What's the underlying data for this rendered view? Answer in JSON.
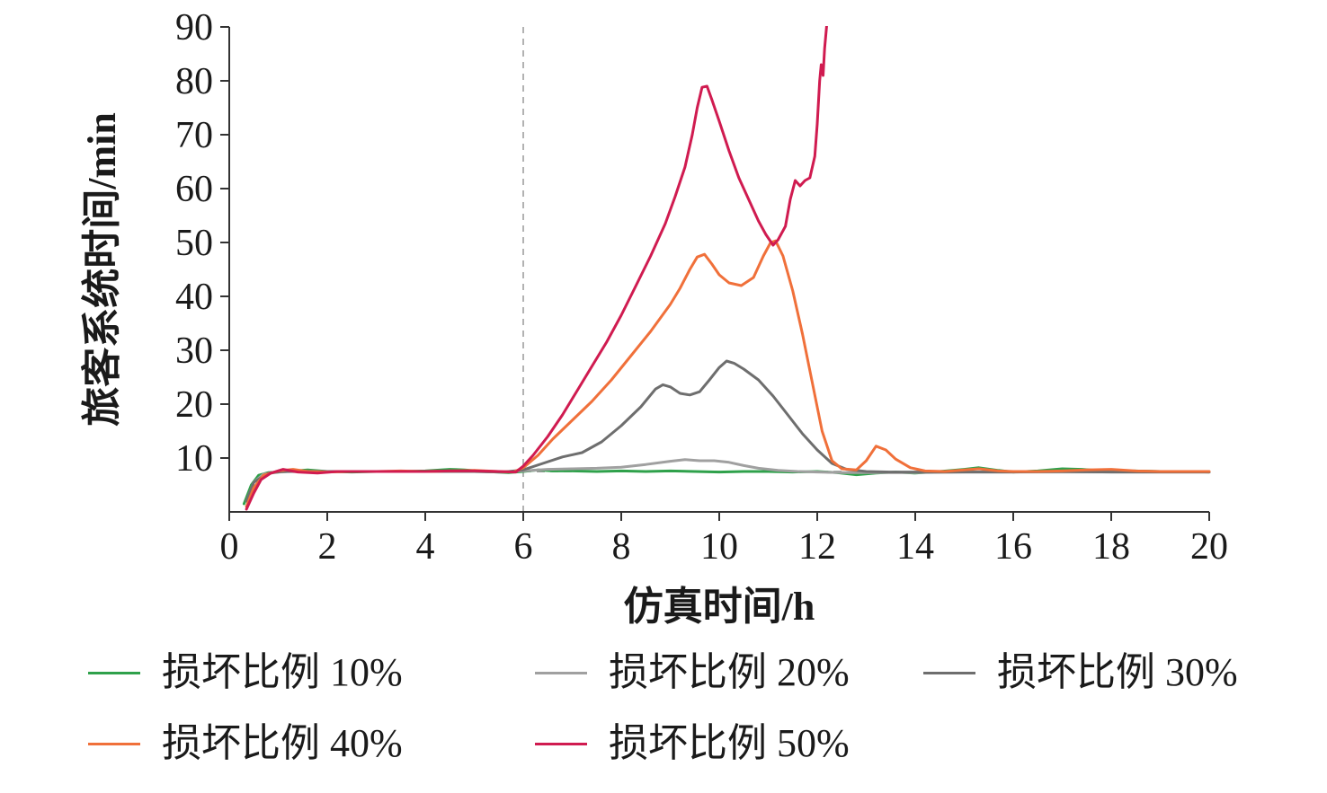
{
  "chart_data": {
    "type": "line",
    "title": "",
    "xlabel": "仿真时间/h",
    "ylabel": "旅客系统时间/min",
    "xlim": [
      0,
      20
    ],
    "ylim": [
      0,
      90
    ],
    "xticks": [
      0,
      2,
      4,
      6,
      8,
      10,
      12,
      14,
      16,
      18,
      20
    ],
    "yticks": [
      10,
      20,
      30,
      40,
      50,
      60,
      70,
      80,
      90
    ],
    "grid": false,
    "legend_position": "bottom",
    "axis_color": "#333333",
    "annotations": {
      "vline_x": 6,
      "vline_color": "#999999",
      "hline_y": 7.5,
      "hline_x1": 6,
      "hline_x2": 12.6,
      "hline_color": "#777777"
    },
    "series": [
      {
        "label": "损坏比例 10%",
        "color": "#2fa14b",
        "points": [
          [
            0.3,
            1.5
          ],
          [
            0.45,
            5
          ],
          [
            0.6,
            6.8
          ],
          [
            0.8,
            7.3
          ],
          [
            1.2,
            7.5
          ],
          [
            1.6,
            7.8
          ],
          [
            2,
            7.5
          ],
          [
            2.5,
            7.4
          ],
          [
            3,
            7.5
          ],
          [
            3.5,
            7.5
          ],
          [
            4,
            7.6
          ],
          [
            4.5,
            7.9
          ],
          [
            4.8,
            7.8
          ],
          [
            5.2,
            7.5
          ],
          [
            5.7,
            7.3
          ],
          [
            6,
            7.5
          ],
          [
            6.3,
            7.8
          ],
          [
            6.6,
            7.6
          ],
          [
            7,
            7.6
          ],
          [
            7.5,
            7.5
          ],
          [
            8,
            7.6
          ],
          [
            8.5,
            7.5
          ],
          [
            9,
            7.6
          ],
          [
            9.5,
            7.5
          ],
          [
            10,
            7.4
          ],
          [
            10.5,
            7.5
          ],
          [
            11,
            7.5
          ],
          [
            11.5,
            7.4
          ],
          [
            12,
            7.5
          ],
          [
            12.4,
            7.3
          ],
          [
            12.8,
            6.9
          ],
          [
            13.2,
            7.2
          ],
          [
            13.6,
            7.4
          ],
          [
            14,
            7.2
          ],
          [
            14.5,
            7.5
          ],
          [
            15,
            7.9
          ],
          [
            15.3,
            8.2
          ],
          [
            15.7,
            7.7
          ],
          [
            16,
            7.4
          ],
          [
            16.5,
            7.6
          ],
          [
            17,
            8.0
          ],
          [
            17.4,
            7.9
          ],
          [
            18,
            7.5
          ],
          [
            18.5,
            7.6
          ],
          [
            19,
            7.5
          ],
          [
            19.5,
            7.5
          ],
          [
            20,
            7.4
          ]
        ]
      },
      {
        "label": "损坏比例 20%",
        "color": "#a0a0a0",
        "points": [
          [
            0.35,
            2
          ],
          [
            0.5,
            5.5
          ],
          [
            0.7,
            7
          ],
          [
            1,
            7.4
          ],
          [
            1.5,
            7.5
          ],
          [
            2,
            7.5
          ],
          [
            3,
            7.5
          ],
          [
            4,
            7.5
          ],
          [
            5,
            7.5
          ],
          [
            5.5,
            7.4
          ],
          [
            6,
            7.6
          ],
          [
            6.5,
            7.9
          ],
          [
            7,
            8.0
          ],
          [
            7.5,
            8.1
          ],
          [
            8,
            8.3
          ],
          [
            8.5,
            8.8
          ],
          [
            9,
            9.4
          ],
          [
            9.3,
            9.7
          ],
          [
            9.6,
            9.5
          ],
          [
            9.9,
            9.5
          ],
          [
            10.2,
            9.2
          ],
          [
            10.5,
            8.6
          ],
          [
            10.8,
            8.1
          ],
          [
            11.2,
            7.7
          ],
          [
            11.6,
            7.5
          ],
          [
            12,
            7.4
          ],
          [
            12.5,
            7.3
          ],
          [
            13,
            7.3
          ],
          [
            13.5,
            7.3
          ],
          [
            14,
            7.3
          ],
          [
            15,
            7.4
          ],
          [
            16,
            7.4
          ],
          [
            17,
            7.4
          ],
          [
            18,
            7.4
          ],
          [
            19,
            7.4
          ],
          [
            20,
            7.4
          ]
        ]
      },
      {
        "label": "损坏比例 30%",
        "color": "#6e6e6e",
        "points": [
          [
            0.35,
            2
          ],
          [
            0.5,
            5.5
          ],
          [
            0.8,
            7.2
          ],
          [
            1.2,
            7.6
          ],
          [
            2,
            7.5
          ],
          [
            3,
            7.5
          ],
          [
            4,
            7.5
          ],
          [
            5,
            7.5
          ],
          [
            5.6,
            7.4
          ],
          [
            6,
            7.8
          ],
          [
            6.4,
            9
          ],
          [
            6.8,
            10.2
          ],
          [
            7.2,
            11
          ],
          [
            7.6,
            13
          ],
          [
            8,
            16
          ],
          [
            8.4,
            19.5
          ],
          [
            8.7,
            22.8
          ],
          [
            8.85,
            23.6
          ],
          [
            9,
            23.2
          ],
          [
            9.2,
            22.0
          ],
          [
            9.4,
            21.7
          ],
          [
            9.6,
            22.3
          ],
          [
            9.8,
            24.5
          ],
          [
            10,
            26.8
          ],
          [
            10.15,
            28
          ],
          [
            10.3,
            27.6
          ],
          [
            10.5,
            26.5
          ],
          [
            10.8,
            24.5
          ],
          [
            11.1,
            21.5
          ],
          [
            11.4,
            18
          ],
          [
            11.7,
            14.5
          ],
          [
            12,
            11.5
          ],
          [
            12.3,
            9
          ],
          [
            12.6,
            7.9
          ],
          [
            13,
            7.5
          ],
          [
            13.5,
            7.4
          ],
          [
            14,
            7.4
          ],
          [
            15,
            7.4
          ],
          [
            16,
            7.4
          ],
          [
            17,
            7.5
          ],
          [
            18,
            7.4
          ],
          [
            19,
            7.4
          ],
          [
            20,
            7.4
          ]
        ]
      },
      {
        "label": "损坏比例 40%",
        "color": "#f0703a",
        "points": [
          [
            0.35,
            1
          ],
          [
            0.5,
            4.5
          ],
          [
            0.7,
            6.8
          ],
          [
            1,
            7.6
          ],
          [
            1.3,
            7.9
          ],
          [
            1.6,
            7.5
          ],
          [
            2,
            7.4
          ],
          [
            2.5,
            7.5
          ],
          [
            3,
            7.5
          ],
          [
            3.5,
            7.6
          ],
          [
            4,
            7.5
          ],
          [
            4.5,
            7.6
          ],
          [
            5,
            7.7
          ],
          [
            5.5,
            7.5
          ],
          [
            5.8,
            7.4
          ],
          [
            6,
            8.2
          ],
          [
            6.3,
            10.5
          ],
          [
            6.6,
            13.5
          ],
          [
            7,
            17
          ],
          [
            7.4,
            20.5
          ],
          [
            7.8,
            24.5
          ],
          [
            8.2,
            29
          ],
          [
            8.6,
            33.5
          ],
          [
            9,
            38.5
          ],
          [
            9.2,
            41.5
          ],
          [
            9.4,
            45
          ],
          [
            9.55,
            47.3
          ],
          [
            9.7,
            47.8
          ],
          [
            9.85,
            46
          ],
          [
            10,
            44
          ],
          [
            10.2,
            42.5
          ],
          [
            10.45,
            42
          ],
          [
            10.7,
            43.5
          ],
          [
            10.9,
            47.5
          ],
          [
            11.05,
            50
          ],
          [
            11.15,
            50.3
          ],
          [
            11.3,
            47.5
          ],
          [
            11.5,
            41
          ],
          [
            11.7,
            33
          ],
          [
            11.9,
            24
          ],
          [
            12.1,
            15
          ],
          [
            12.3,
            9.5
          ],
          [
            12.5,
            8
          ],
          [
            12.8,
            7.8
          ],
          [
            13,
            9.5
          ],
          [
            13.2,
            12.2
          ],
          [
            13.4,
            11.5
          ],
          [
            13.6,
            9.8
          ],
          [
            13.9,
            8.2
          ],
          [
            14.2,
            7.6
          ],
          [
            14.6,
            7.5
          ],
          [
            15,
            7.8
          ],
          [
            15.3,
            8.0
          ],
          [
            15.7,
            7.6
          ],
          [
            16,
            7.5
          ],
          [
            16.5,
            7.5
          ],
          [
            17,
            7.6
          ],
          [
            17.5,
            7.8
          ],
          [
            18,
            7.9
          ],
          [
            18.5,
            7.6
          ],
          [
            19,
            7.5
          ],
          [
            19.5,
            7.5
          ],
          [
            20,
            7.5
          ]
        ]
      },
      {
        "label": "损坏比例 50%",
        "color": "#d01b50",
        "points": [
          [
            0.35,
            0.5
          ],
          [
            0.5,
            3.5
          ],
          [
            0.65,
            6
          ],
          [
            0.85,
            7.2
          ],
          [
            1.1,
            7.9
          ],
          [
            1.4,
            7.4
          ],
          [
            1.8,
            7.2
          ],
          [
            2.2,
            7.5
          ],
          [
            2.6,
            7.5
          ],
          [
            3,
            7.5
          ],
          [
            3.5,
            7.5
          ],
          [
            4,
            7.5
          ],
          [
            4.5,
            7.6
          ],
          [
            5,
            7.6
          ],
          [
            5.5,
            7.5
          ],
          [
            5.85,
            7.4
          ],
          [
            6,
            8.5
          ],
          [
            6.2,
            10.5
          ],
          [
            6.5,
            14
          ],
          [
            6.8,
            18
          ],
          [
            7.1,
            22.5
          ],
          [
            7.4,
            27
          ],
          [
            7.7,
            31.5
          ],
          [
            8,
            36.5
          ],
          [
            8.3,
            42
          ],
          [
            8.6,
            47.5
          ],
          [
            8.9,
            53.5
          ],
          [
            9.1,
            58.5
          ],
          [
            9.3,
            64
          ],
          [
            9.45,
            70
          ],
          [
            9.55,
            75
          ],
          [
            9.65,
            78.8
          ],
          [
            9.75,
            79
          ],
          [
            9.85,
            76.5
          ],
          [
            10,
            72.5
          ],
          [
            10.2,
            67
          ],
          [
            10.4,
            62
          ],
          [
            10.6,
            58
          ],
          [
            10.8,
            54
          ],
          [
            10.95,
            51.5
          ],
          [
            11.1,
            49.5
          ],
          [
            11.2,
            50.5
          ],
          [
            11.35,
            53
          ],
          [
            11.45,
            58
          ],
          [
            11.55,
            61.5
          ],
          [
            11.65,
            60.5
          ],
          [
            11.75,
            61.5
          ],
          [
            11.85,
            62
          ],
          [
            11.95,
            66
          ],
          [
            12.0,
            72
          ],
          [
            12.05,
            80
          ],
          [
            12.08,
            83
          ],
          [
            12.12,
            81
          ],
          [
            12.15,
            86
          ],
          [
            12.2,
            91
          ],
          [
            12.25,
            95
          ]
        ]
      }
    ]
  }
}
